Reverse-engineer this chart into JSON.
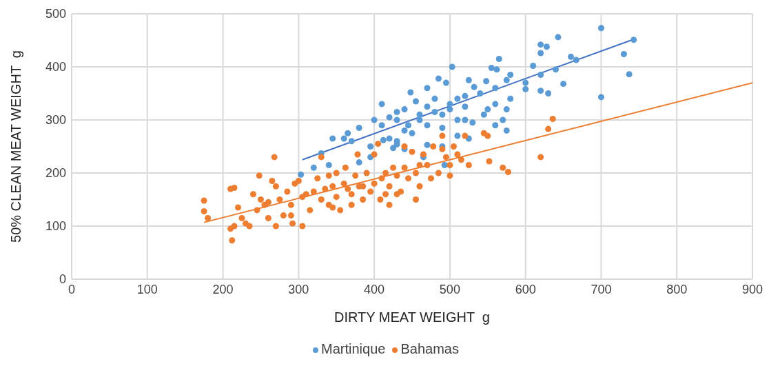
{
  "chart_data": {
    "type": "scatter",
    "xlabel": "DIRTY MEAT WEIGHT  g",
    "ylabel": "50% CLEAN MEAT WEIGHT  g",
    "xlim": [
      0,
      900
    ],
    "xticks": [
      0,
      100,
      200,
      300,
      400,
      500,
      600,
      700,
      800,
      900
    ],
    "ylim": [
      0,
      500
    ],
    "yticks": [
      0,
      100,
      200,
      300,
      400,
      500
    ],
    "grid": true,
    "legend": "bottom",
    "marker": "circle",
    "series": [
      {
        "name": "Martinique",
        "color": "#5b9bd5",
        "x": [
          700,
          643,
          743,
          620,
          628,
          620,
          730,
          660,
          565,
          667,
          503,
          555,
          562,
          610,
          640,
          737,
          580,
          620,
          525,
          548,
          575,
          600,
          650,
          532,
          560,
          600,
          620,
          630,
          700,
          580,
          485,
          495,
          470,
          448,
          455,
          510,
          520,
          540,
          480,
          500,
          520,
          470,
          480,
          440,
          460,
          430,
          490,
          500,
          550,
          560,
          545,
          575,
          570,
          575,
          400,
          410,
          420,
          430,
          445,
          460,
          470,
          410,
          412,
          395,
          380,
          365,
          360,
          345,
          370,
          330,
          320,
          303,
          340,
          380,
          395,
          420,
          430,
          440,
          450,
          490,
          520,
          530,
          490,
          470,
          510,
          525,
          465,
          493,
          425,
          440,
          430,
          510,
          560
        ],
        "values": [
          473,
          456,
          451,
          442,
          438,
          426,
          424,
          419,
          415,
          413,
          400,
          398,
          395,
          402,
          395,
          386,
          385,
          385,
          375,
          373,
          375,
          370,
          368,
          362,
          360,
          358,
          355,
          350,
          343,
          340,
          378,
          370,
          360,
          352,
          335,
          340,
          345,
          350,
          340,
          330,
          325,
          325,
          315,
          320,
          310,
          315,
          310,
          320,
          320,
          330,
          310,
          320,
          300,
          280,
          300,
          290,
          305,
          300,
          290,
          300,
          290,
          330,
          262,
          250,
          285,
          275,
          265,
          265,
          260,
          237,
          210,
          197,
          215,
          220,
          230,
          265,
          260,
          280,
          275,
          285,
          300,
          295,
          250,
          253,
          270,
          265,
          230,
          215,
          247,
          245,
          254,
          300,
          290
        ]
      },
      {
        "name": "Bahamas",
        "color": "#ed7d31",
        "x": [
          175,
          175,
          180,
          210,
          215,
          210,
          212,
          215,
          220,
          225,
          230,
          235,
          240,
          245,
          248,
          250,
          255,
          260,
          265,
          268,
          270,
          270,
          275,
          280,
          285,
          290,
          292,
          295,
          300,
          305,
          305,
          310,
          315,
          320,
          325,
          330,
          330,
          335,
          340,
          340,
          345,
          350,
          350,
          355,
          360,
          362,
          365,
          370,
          370,
          375,
          378,
          380,
          385,
          390,
          395,
          400,
          400,
          405,
          408,
          410,
          415,
          420,
          420,
          425,
          430,
          430,
          435,
          440,
          440,
          445,
          450,
          455,
          460,
          460,
          465,
          470,
          475,
          478,
          485,
          490,
          495,
          500,
          500,
          505,
          510,
          515,
          520,
          525,
          545,
          550,
          552,
          570,
          577,
          620,
          630,
          636,
          490,
          455,
          415,
          385,
          345,
          290,
          260
        ],
        "values": [
          148,
          128,
          115,
          170,
          172,
          95,
          73,
          100,
          135,
          115,
          105,
          100,
          160,
          130,
          195,
          150,
          140,
          115,
          185,
          230,
          175,
          100,
          150,
          120,
          165,
          140,
          105,
          180,
          185,
          155,
          100,
          160,
          130,
          165,
          190,
          230,
          150,
          170,
          140,
          195,
          175,
          200,
          155,
          130,
          180,
          210,
          170,
          160,
          140,
          195,
          235,
          175,
          150,
          200,
          165,
          235,
          180,
          255,
          150,
          190,
          200,
          140,
          175,
          210,
          195,
          160,
          165,
          250,
          210,
          190,
          240,
          200,
          215,
          175,
          235,
          215,
          190,
          250,
          200,
          270,
          230,
          215,
          195,
          250,
          235,
          225,
          270,
          215,
          275,
          270,
          222,
          210,
          202,
          230,
          283,
          302,
          245,
          150,
          160,
          175,
          135,
          120,
          145
        ]
      },
      {
        "type": "line",
        "marker": "none",
        "color": "#4472c4",
        "x": [
          305,
          743
        ],
        "values": [
          225,
          452
        ]
      },
      {
        "type": "line",
        "marker": "none",
        "color": "#ed7d31",
        "x": [
          175,
          900
        ],
        "values": [
          107,
          370
        ]
      }
    ]
  }
}
